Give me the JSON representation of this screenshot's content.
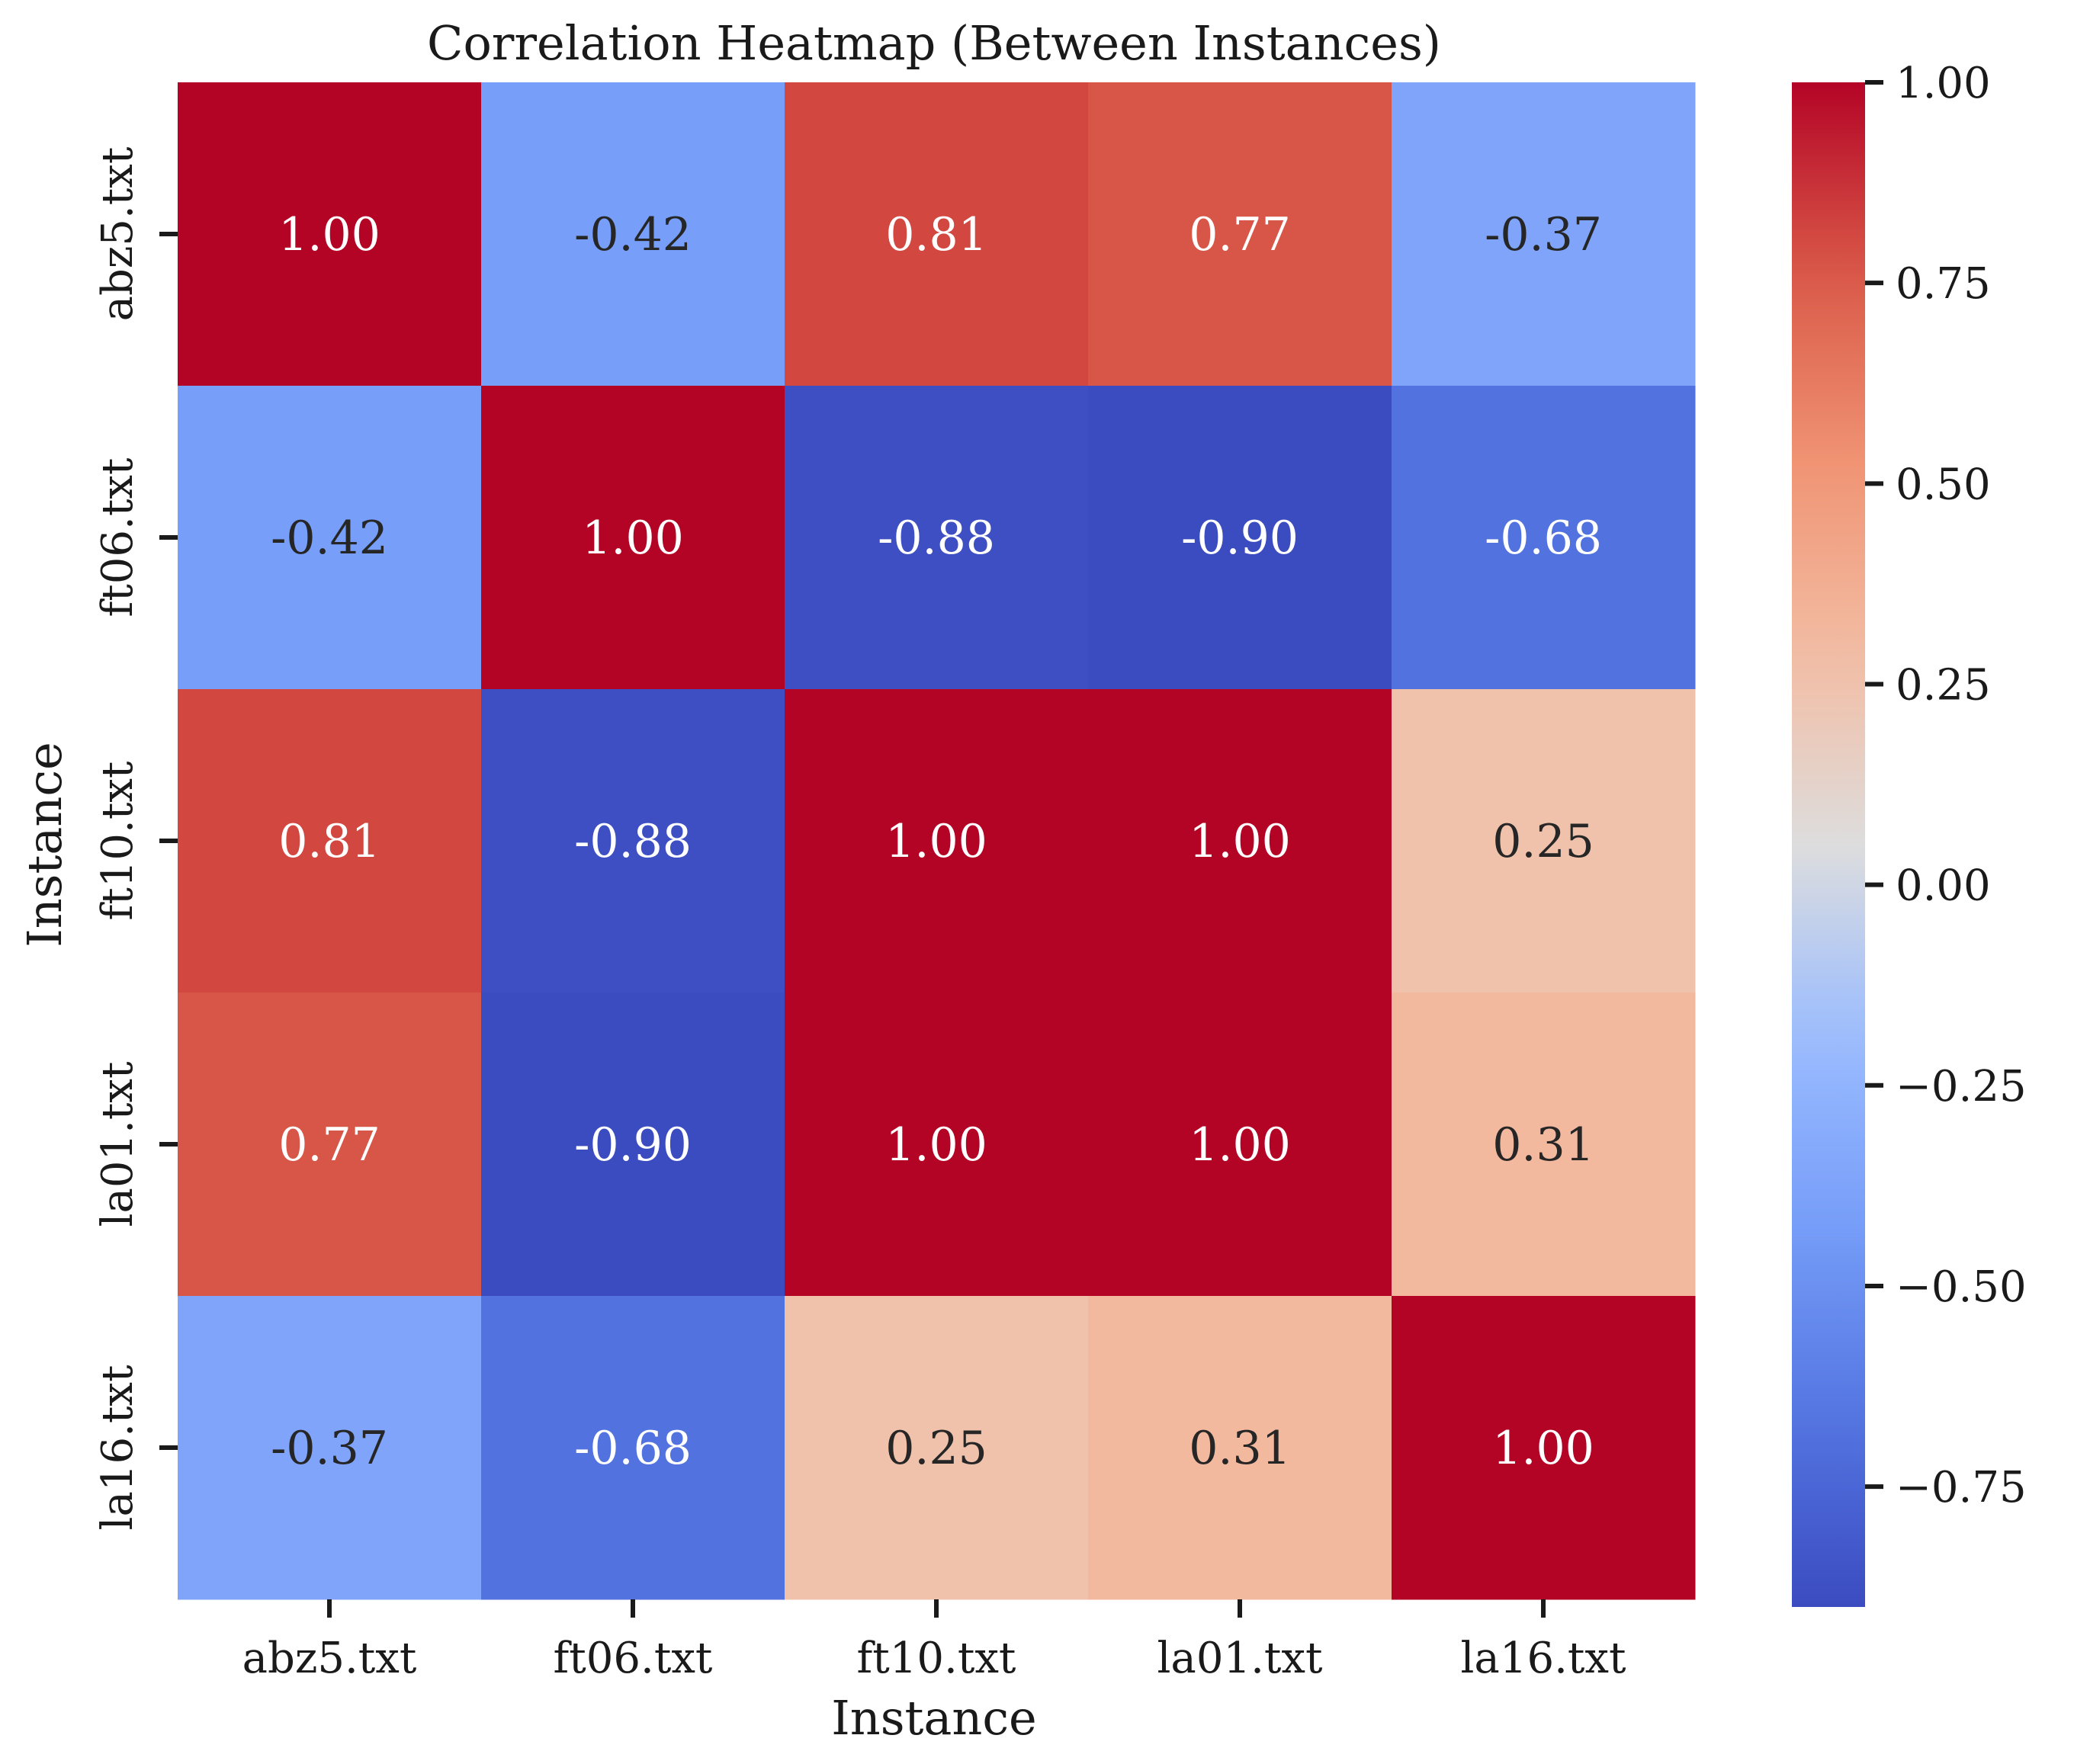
{
  "chart_data": {
    "type": "heatmap",
    "title": "Correlation Heatmap (Between Instances)",
    "xlabel": "Instance",
    "ylabel": "Instance",
    "x_categories": [
      "abz5.txt",
      "ft06.txt",
      "ft10.txt",
      "la01.txt",
      "la16.txt"
    ],
    "y_categories": [
      "abz5.txt",
      "ft06.txt",
      "ft10.txt",
      "la01.txt",
      "la16.txt"
    ],
    "values": [
      [
        1.0,
        -0.42,
        0.81,
        0.77,
        -0.37
      ],
      [
        -0.42,
        1.0,
        -0.88,
        -0.9,
        -0.68
      ],
      [
        0.81,
        -0.88,
        1.0,
        1.0,
        0.25
      ],
      [
        0.77,
        -0.9,
        1.0,
        1.0,
        0.31
      ],
      [
        -0.37,
        -0.68,
        0.25,
        0.31,
        1.0
      ]
    ],
    "value_format": "2 decimals",
    "colormap": "coolwarm",
    "colorbar": {
      "range": [
        -0.9,
        1.0
      ],
      "ticks": [
        1.0,
        0.75,
        0.5,
        0.25,
        0.0,
        -0.25,
        -0.5,
        -0.75
      ],
      "tick_labels": [
        "1.00",
        "0.75",
        "0.50",
        "0.25",
        "0.00",
        "−0.25",
        "−0.50",
        "−0.75"
      ]
    },
    "grid": false,
    "legend": "colorbar-right"
  }
}
